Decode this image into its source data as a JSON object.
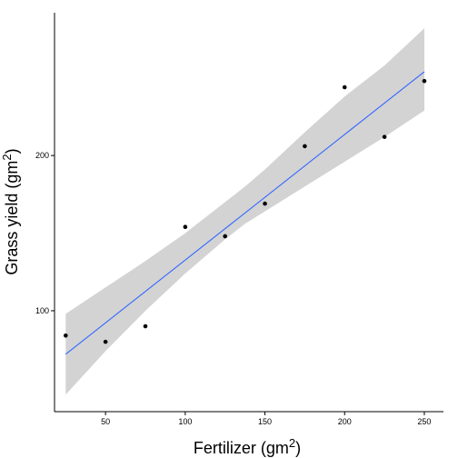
{
  "chart_data": {
    "type": "scatter",
    "xlabel": "Fertilizer (gm",
    "xlabel_sup": "2",
    "xlabel_end": ")",
    "ylabel": "Grass yield (gm",
    "ylabel_sup": "2",
    "ylabel_end": ")",
    "xlim": [
      18,
      262
    ],
    "ylim": [
      35,
      292
    ],
    "x_ticks": [
      50,
      100,
      150,
      200,
      250
    ],
    "y_ticks": [
      100,
      200
    ],
    "grid": false,
    "points": [
      {
        "x": 25,
        "y": 84
      },
      {
        "x": 50,
        "y": 80
      },
      {
        "x": 75,
        "y": 90
      },
      {
        "x": 100,
        "y": 154
      },
      {
        "x": 125,
        "y": 148
      },
      {
        "x": 150,
        "y": 169
      },
      {
        "x": 175,
        "y": 206
      },
      {
        "x": 200,
        "y": 244
      },
      {
        "x": 225,
        "y": 212
      },
      {
        "x": 250,
        "y": 248
      }
    ],
    "fit_line": {
      "x": [
        25,
        250
      ],
      "y": [
        72,
        254
      ]
    },
    "confidence_band": {
      "x": [
        25,
        50,
        75,
        100,
        125,
        137.5,
        150,
        175,
        200,
        225,
        250
      ],
      "lower": [
        46,
        74,
        100,
        124,
        146,
        156,
        164,
        180,
        196,
        212,
        229
      ],
      "upper": [
        98,
        115,
        132,
        150,
        170,
        180,
        191,
        215,
        238,
        258,
        282
      ]
    },
    "colors": {
      "points": "#000000",
      "fit_line": "#3366ff",
      "band": "#d3d3d3",
      "axis": "#000000"
    }
  }
}
